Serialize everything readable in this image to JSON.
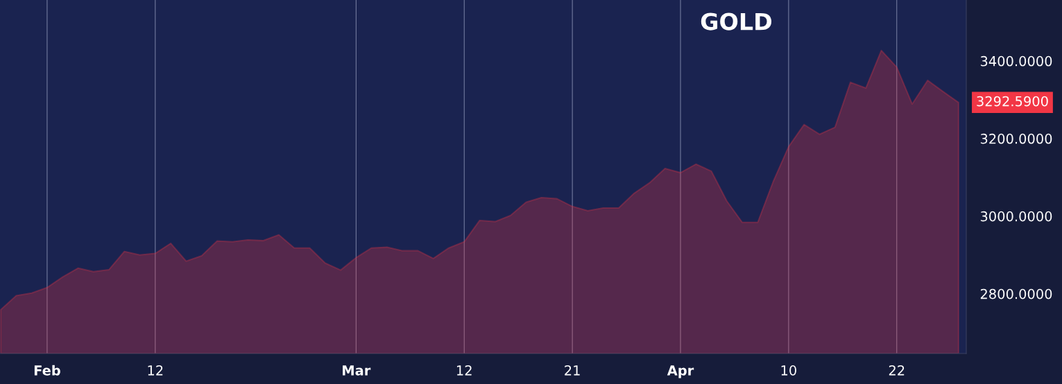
{
  "chart_data": {
    "type": "area",
    "title": "GOLD",
    "categories": [
      null,
      null,
      null,
      "Feb",
      null,
      null,
      null,
      null,
      null,
      null,
      "12",
      null,
      null,
      null,
      null,
      null,
      null,
      null,
      null,
      null,
      null,
      null,
      null,
      "Mar",
      null,
      null,
      null,
      null,
      null,
      null,
      "12",
      null,
      null,
      null,
      null,
      null,
      null,
      "21",
      null,
      null,
      null,
      null,
      null,
      null,
      "Apr",
      null,
      null,
      null,
      null,
      null,
      null,
      "10",
      null,
      null,
      null,
      null,
      null,
      null,
      "22",
      null,
      null,
      null,
      null
    ],
    "series": [
      {
        "color": "#f23645",
        "values": [
          2759,
          2795,
          2802,
          2816,
          2843,
          2866,
          2857,
          2862,
          2909,
          2900,
          2904,
          2930,
          2884,
          2898,
          2936,
          2934,
          2939,
          2937,
          2952,
          2918,
          2918,
          2879,
          2861,
          2893,
          2918,
          2920,
          2911,
          2911,
          2891,
          2918,
          2934,
          2989,
          2986,
          3002,
          3036,
          3048,
          3045,
          3025,
          3014,
          3021,
          3021,
          3059,
          3086,
          3123,
          3112,
          3134,
          3116,
          3039,
          2984,
          2984,
          3089,
          3179,
          3236,
          3211,
          3229,
          3345,
          3330,
          3427,
          3384,
          3289,
          3350,
          3321,
          3293
        ]
      }
    ],
    "ylim": [
      2646,
      3557
    ],
    "yticks": [
      {
        "value": 2800,
        "label": "2800.0000"
      },
      {
        "value": 3000,
        "label": "3000.0000"
      },
      {
        "value": 3200,
        "label": "3200.0000"
      },
      {
        "value": 3400,
        "label": "3400.0000"
      }
    ],
    "annotations": [
      "3292.5900"
    ],
    "grid": "x"
  }
}
